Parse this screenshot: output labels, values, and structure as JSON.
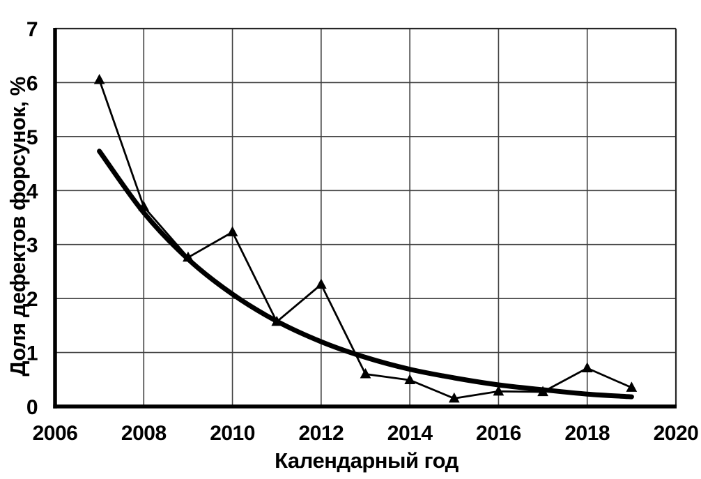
{
  "chart_data": {
    "type": "line",
    "title": "",
    "xlabel": "Календарный год",
    "ylabel": "Доля дефектов форсунок, %",
    "xlim": [
      2006,
      2020
    ],
    "ylim": [
      0,
      7
    ],
    "x_tick_values": [
      2006,
      2008,
      2010,
      2012,
      2014,
      2016,
      2018,
      2020
    ],
    "x_tick_labels": [
      "2006",
      "2008",
      "2010",
      "2012",
      "2014",
      "2016",
      "2018",
      "2020"
    ],
    "y_tick_values": [
      0,
      1,
      2,
      3,
      4,
      5,
      6,
      7
    ],
    "y_tick_labels": [
      "0",
      "1",
      "2",
      "3",
      "4",
      "5",
      "6",
      "7"
    ],
    "grid": true,
    "legend_position": "none",
    "x": [
      2007,
      2008,
      2009,
      2010,
      2011,
      2012,
      2013,
      2014,
      2015,
      2016,
      2017,
      2018,
      2019
    ],
    "series": [
      {
        "name": "injector-defect-share-data",
        "style": "thin-line-with-markers",
        "marker": "filled-triangle-up",
        "values": [
          6.05,
          3.7,
          2.76,
          3.23,
          1.57,
          2.26,
          0.6,
          0.49,
          0.15,
          0.28,
          0.27,
          0.71,
          0.35
        ]
      },
      {
        "name": "trend-curve",
        "style": "thick-smooth-curve",
        "marker": "none",
        "values": [
          4.73,
          3.59,
          2.73,
          2.08,
          1.58,
          1.2,
          0.91,
          0.69,
          0.53,
          0.4,
          0.31,
          0.23,
          0.18
        ]
      }
    ],
    "colors": {
      "background": "#ffffff",
      "series_line": "#000000",
      "marker": "#000000",
      "trend_line": "#000000",
      "gridline": "#3f3f3f",
      "frame": "#262626",
      "axis": "#000000",
      "text": "#000000"
    }
  }
}
